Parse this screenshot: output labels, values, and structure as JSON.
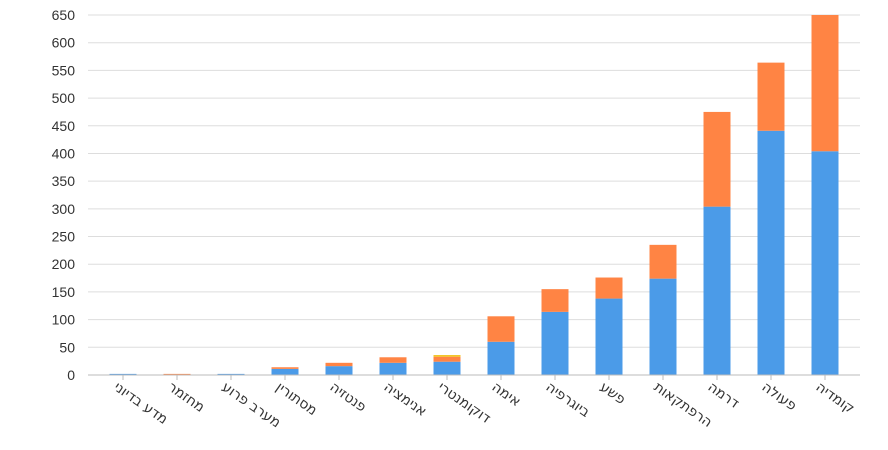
{
  "chart_data": {
    "type": "bar",
    "stacked": true,
    "categories": [
      "מדע בדיוני",
      "מחזמר",
      "מערב פרוע",
      "מסתורין",
      "פנטזיה",
      "אנימציה",
      "דוקומנטרי",
      "אימה",
      "ביוגרפיה",
      "פשע",
      "הרפתקאות",
      "דרמה",
      "פעולה",
      "קומדיה"
    ],
    "series": [
      {
        "color": "#4b9be8",
        "values": [
          2,
          0,
          2,
          11,
          16,
          22,
          24,
          60,
          114,
          138,
          174,
          304,
          441,
          404
        ]
      },
      {
        "color": "#ff8444",
        "values": [
          0,
          2,
          0,
          3,
          6,
          10,
          9,
          46,
          41,
          38,
          61,
          171,
          123,
          246
        ]
      },
      {
        "color": "#f2c31c",
        "values": [
          0,
          0,
          0,
          0,
          0,
          0,
          3,
          0,
          0,
          0,
          0,
          0,
          0,
          0
        ]
      }
    ],
    "ylim": [
      0,
      650
    ],
    "yticks": [
      "0",
      "50",
      "100",
      "150",
      "200",
      "250",
      "300",
      "350",
      "400",
      "450",
      "500",
      "550",
      "600",
      "650"
    ],
    "grid": true,
    "legend": "none"
  }
}
